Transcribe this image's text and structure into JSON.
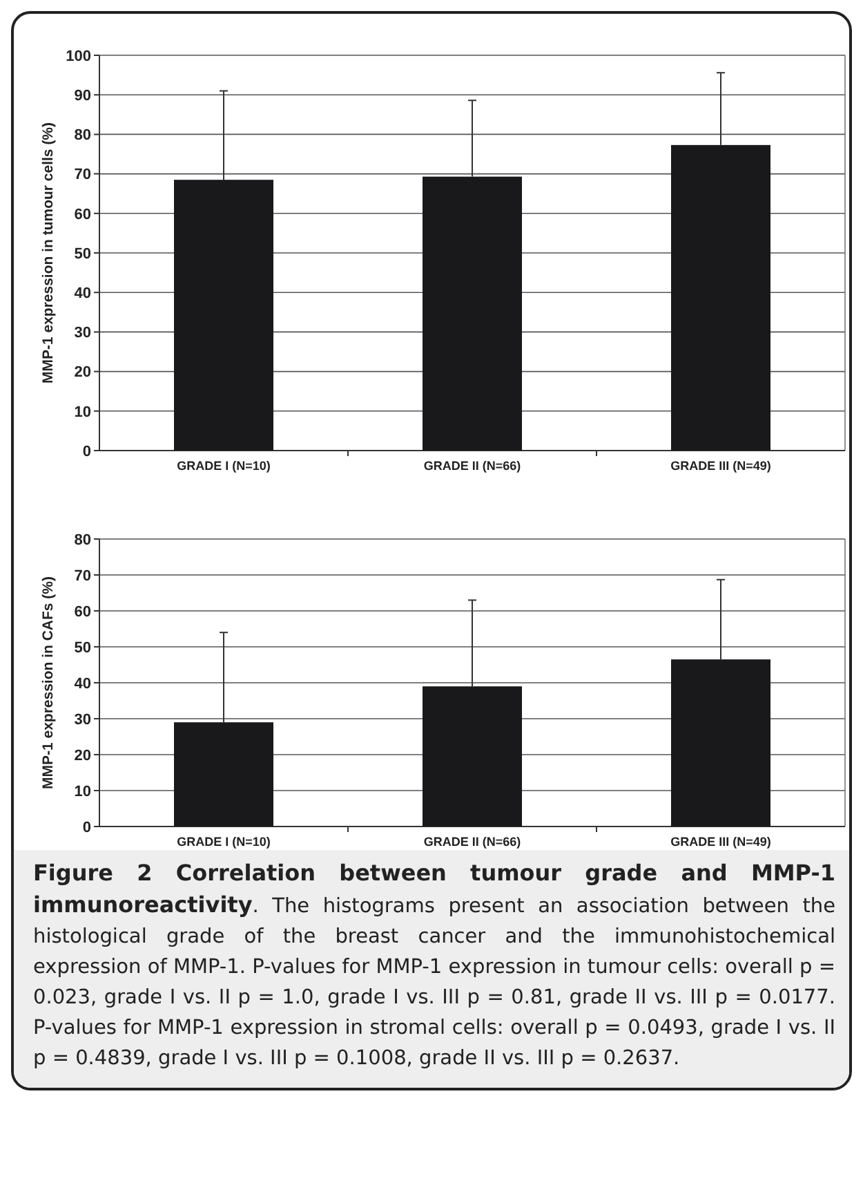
{
  "chart_data": [
    {
      "type": "bar",
      "ylabel": "MMP-1 expression in tumour cells (%)",
      "categories": [
        "GRADE I (N=10)",
        "GRADE II (N=66)",
        "GRADE III (N=49)"
      ],
      "values": [
        68.5,
        69.3,
        77.3
      ],
      "errors": [
        [
          68.5,
          91
        ],
        [
          69.3,
          88.6
        ],
        [
          77.3,
          95.6
        ]
      ],
      "color": "#19191b",
      "ylim": [
        0,
        100
      ],
      "yticks": [
        0,
        10,
        20,
        30,
        40,
        50,
        60,
        70,
        80,
        90,
        100
      ],
      "grid": "y"
    },
    {
      "type": "bar",
      "ylabel": "MMP-1 expression in CAFs (%)",
      "categories": [
        "GRADE I (N=10)",
        "GRADE II (N=66)",
        "GRADE III (N=49)"
      ],
      "values": [
        29,
        39,
        46.5
      ],
      "errors": [
        [
          29,
          54
        ],
        [
          39,
          63
        ],
        [
          46.5,
          68.7
        ]
      ],
      "color": "#19191b",
      "ylim": [
        0,
        80
      ],
      "yticks": [
        0,
        10,
        20,
        30,
        40,
        50,
        60,
        70,
        80
      ],
      "grid": "y",
      "annotations": [
        "Figure 2 Correlation between tumour grade and MMP-1 immunoreactivity",
        ". The histograms present an association between the histological grade of the breast cancer and the immunohistochemical expression of MMP-1. P-values for MMP-1 expression in tumour cells: overall p = 0.023, grade I vs. II p = 1.0, grade I vs. III p = 0.81, grade II vs. III p = 0.0177. P-values for MMP-1 expression in stromal cells: overall p = 0.0493, grade I vs. II p = 0.4839, grade I vs. III p = 0.1008, grade II vs. III p = 0.2637."
      ]
    }
  ]
}
